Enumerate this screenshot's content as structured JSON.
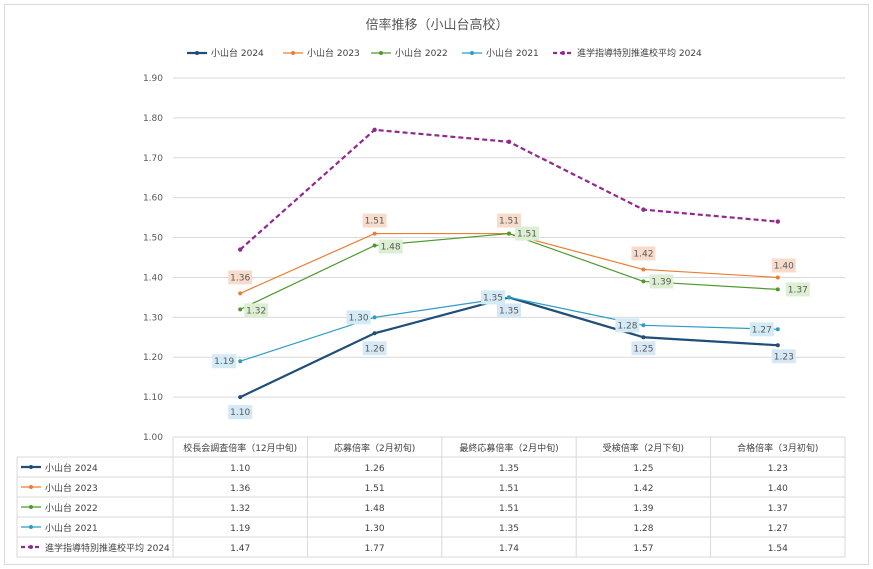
{
  "chart_data": {
    "type": "line",
    "title": "倍率推移（小山台高校）",
    "categories": [
      "校長会調査倍率（12月中旬)",
      "応募倍率（2月初旬)",
      "最終応募倍率（2月中旬)",
      "受検倍率（2月下旬)",
      "合格倍率（3月初旬)"
    ],
    "ylim": [
      1.0,
      1.9
    ],
    "ytick_step": 0.1,
    "grid": true,
    "legend_position": "top",
    "data_table": true,
    "series": [
      {
        "name": "小山台 2024",
        "values": [
          1.1,
          1.26,
          1.35,
          1.25,
          1.23
        ],
        "color": "#1f4e79",
        "dash": false,
        "width": 2.2,
        "labels": true,
        "label_bg": "#d6e8f5",
        "label_color": "#595959"
      },
      {
        "name": "小山台 2023",
        "values": [
          1.36,
          1.51,
          1.51,
          1.42,
          1.4
        ],
        "color": "#ed7d31",
        "dash": false,
        "width": 1.2,
        "labels": true,
        "label_bg": "#f8dccb",
        "label_color": "#595959"
      },
      {
        "name": "小山台 2022",
        "values": [
          1.32,
          1.48,
          1.51,
          1.39,
          1.37
        ],
        "color": "#4f9a2e",
        "dash": false,
        "width": 1.2,
        "labels": true,
        "label_bg": "#dcefd3",
        "label_color": "#595959"
      },
      {
        "name": "小山台 2021",
        "values": [
          1.19,
          1.3,
          1.35,
          1.28,
          1.27
        ],
        "color": "#2e9cc4",
        "dash": false,
        "width": 1.2,
        "labels": true,
        "label_bg": "#d3ebf6",
        "label_color": "#595959"
      },
      {
        "name": "進学指導特別推進校平均 2024",
        "values": [
          1.47,
          1.77,
          1.74,
          1.57,
          1.54
        ],
        "color": "#8e2a8e",
        "dash": true,
        "width": 2.2,
        "labels": false
      }
    ],
    "table_values": [
      [
        "1.10",
        "1.26",
        "1.35",
        "1.25",
        "1.23"
      ],
      [
        "1.36",
        "1.51",
        "1.51",
        "1.42",
        "1.40"
      ],
      [
        "1.32",
        "1.48",
        "1.51",
        "1.39",
        "1.37"
      ],
      [
        "1.19",
        "1.30",
        "1.35",
        "1.28",
        "1.27"
      ],
      [
        "1.47",
        "1.77",
        "1.74",
        "1.57",
        "1.54"
      ]
    ]
  }
}
